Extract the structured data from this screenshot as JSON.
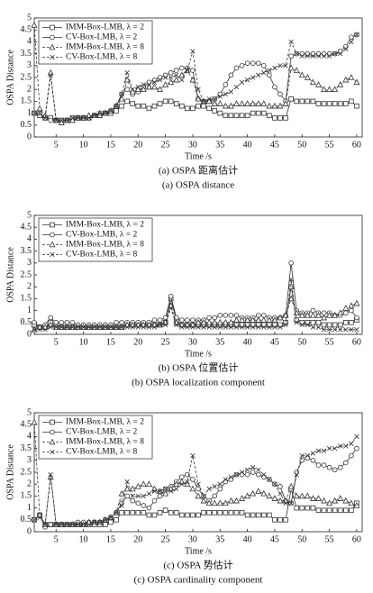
{
  "chart_data": [
    {
      "type": "line",
      "caption": "(a) OSPA 距离估计",
      "subtitle": "(a) OSPA distance",
      "xlabel": "Time /s",
      "ylabel": "OSPA Distance",
      "xlim": [
        1,
        61
      ],
      "xticks": [
        5,
        10,
        15,
        20,
        25,
        30,
        35,
        40,
        45,
        50,
        55,
        60
      ],
      "ylim": [
        0,
        5
      ],
      "yticks": [
        0,
        0.5,
        1,
        1.5,
        2,
        2.5,
        3,
        3.5,
        4,
        4.5,
        5
      ],
      "legend": "upper-left",
      "x": [
        1,
        2,
        3,
        4,
        5,
        6,
        7,
        8,
        9,
        10,
        11,
        12,
        13,
        14,
        15,
        16,
        17,
        18,
        19,
        20,
        21,
        22,
        23,
        24,
        25,
        26,
        27,
        28,
        29,
        30,
        31,
        32,
        33,
        34,
        35,
        36,
        37,
        38,
        39,
        40,
        41,
        42,
        43,
        44,
        45,
        46,
        47,
        48,
        49,
        50,
        51,
        52,
        53,
        54,
        55,
        56,
        57,
        58,
        59,
        60
      ],
      "series": [
        {
          "name": "IMM-Box-LMB, λ = 2",
          "color": "#333333",
          "marker": "square",
          "dash": false,
          "values": [
            1.0,
            0.9,
            0.8,
            0.8,
            0.7,
            0.7,
            0.7,
            0.8,
            0.8,
            0.8,
            0.8,
            0.9,
            0.9,
            1.0,
            1.0,
            1.1,
            1.3,
            1.5,
            1.4,
            1.3,
            1.3,
            1.2,
            1.3,
            1.4,
            1.5,
            1.5,
            1.4,
            1.3,
            1.2,
            1.2,
            1.3,
            1.3,
            1.2,
            1.1,
            1.0,
            0.9,
            0.9,
            0.9,
            0.9,
            0.9,
            1.0,
            1.0,
            1.0,
            0.9,
            0.8,
            0.8,
            0.8,
            1.6,
            1.5,
            1.5,
            1.5,
            1.5,
            1.4,
            1.4,
            1.4,
            1.4,
            1.4,
            1.4,
            1.5,
            1.3
          ]
        },
        {
          "name": "CV-Box-LMB, λ = 2",
          "color": "#333333",
          "marker": "circle",
          "dash": false,
          "values": [
            1.0,
            1.0,
            0.8,
            0.7,
            0.7,
            0.7,
            0.7,
            0.8,
            0.8,
            0.8,
            0.8,
            0.9,
            0.9,
            1.0,
            1.1,
            1.3,
            1.8,
            2.0,
            1.8,
            1.9,
            2.1,
            2.3,
            2.4,
            2.5,
            2.6,
            2.7,
            2.8,
            2.9,
            2.9,
            2.8,
            1.6,
            1.5,
            1.5,
            1.6,
            1.8,
            2.2,
            2.6,
            2.9,
            3.0,
            3.1,
            3.1,
            3.1,
            3.0,
            2.6,
            2.1,
            1.8,
            1.5,
            3.4,
            3.5,
            3.5,
            3.5,
            3.5,
            3.5,
            3.5,
            3.5,
            3.5,
            3.6,
            3.8,
            4.2,
            4.3
          ]
        },
        {
          "name": "IMM-Box-LMB, λ = 8",
          "color": "#333333",
          "marker": "triangle",
          "dash": true,
          "values": [
            4.7,
            1.2,
            0.9,
            2.7,
            0.7,
            0.6,
            0.7,
            0.7,
            0.8,
            0.8,
            0.9,
            0.9,
            1.0,
            1.0,
            1.1,
            1.3,
            1.6,
            2.4,
            1.9,
            2.0,
            2.0,
            2.1,
            2.1,
            2.0,
            2.2,
            2.3,
            2.4,
            2.6,
            2.8,
            2.4,
            1.6,
            1.5,
            1.5,
            1.4,
            1.4,
            1.3,
            1.3,
            1.4,
            1.4,
            1.4,
            1.4,
            1.4,
            1.4,
            1.3,
            1.3,
            1.3,
            1.4,
            2.9,
            2.8,
            2.6,
            2.5,
            2.3,
            2.2,
            2.0,
            2.0,
            2.0,
            2.2,
            2.4,
            2.5,
            2.3
          ]
        },
        {
          "name": "CV-Box-LMB, λ = 8",
          "color": "#333333",
          "marker": "x",
          "dash": true,
          "values": [
            1.0,
            1.0,
            0.8,
            2.6,
            0.7,
            0.7,
            0.7,
            0.8,
            0.8,
            0.8,
            0.8,
            0.9,
            1.0,
            1.0,
            1.1,
            1.3,
            1.8,
            2.7,
            2.0,
            2.1,
            2.2,
            2.2,
            2.3,
            2.4,
            2.5,
            2.5,
            2.6,
            2.4,
            2.8,
            3.6,
            2.0,
            1.5,
            1.6,
            1.6,
            1.7,
            1.8,
            1.9,
            2.1,
            2.3,
            2.4,
            2.5,
            2.6,
            2.7,
            2.8,
            2.9,
            3.0,
            3.0,
            4.0,
            3.5,
            3.4,
            3.4,
            3.4,
            3.4,
            3.4,
            3.4,
            3.5,
            3.5,
            3.7,
            4.0,
            4.3
          ]
        }
      ]
    },
    {
      "type": "line",
      "caption": "(b) OSPA 位置估计",
      "subtitle": "(b) OSPA localization component",
      "xlabel": "Time /s",
      "ylabel": "OSPA Distance",
      "xlim": [
        1,
        61
      ],
      "xticks": [
        5,
        10,
        15,
        20,
        25,
        30,
        35,
        40,
        45,
        50,
        55,
        60
      ],
      "ylim": [
        0,
        5
      ],
      "yticks": [
        0,
        0.5,
        1,
        1.5,
        2,
        2.5,
        3,
        3.5,
        4,
        4.5,
        5
      ],
      "legend": "upper-left",
      "x": [
        1,
        2,
        3,
        4,
        5,
        6,
        7,
        8,
        9,
        10,
        11,
        12,
        13,
        14,
        15,
        16,
        17,
        18,
        19,
        20,
        21,
        22,
        23,
        24,
        25,
        26,
        27,
        28,
        29,
        30,
        31,
        32,
        33,
        34,
        35,
        36,
        37,
        38,
        39,
        40,
        41,
        42,
        43,
        44,
        45,
        46,
        47,
        48,
        49,
        50,
        51,
        52,
        53,
        54,
        55,
        56,
        57,
        58,
        59,
        60
      ],
      "series": [
        {
          "name": "IMM-Box-LMB, λ = 2",
          "color": "#333333",
          "marker": "square",
          "dash": false,
          "values": [
            0.4,
            0.3,
            0.3,
            0.5,
            0.4,
            0.3,
            0.3,
            0.3,
            0.3,
            0.3,
            0.3,
            0.3,
            0.3,
            0.3,
            0.3,
            0.3,
            0.3,
            0.4,
            0.4,
            0.4,
            0.4,
            0.4,
            0.4,
            0.4,
            0.5,
            1.5,
            0.6,
            0.4,
            0.4,
            0.4,
            0.4,
            0.4,
            0.4,
            0.4,
            0.4,
            0.4,
            0.4,
            0.4,
            0.4,
            0.4,
            0.4,
            0.4,
            0.4,
            0.4,
            0.4,
            0.4,
            0.5,
            2.0,
            0.6,
            0.5,
            0.5,
            0.5,
            0.5,
            0.4,
            0.4,
            0.4,
            0.4,
            0.5,
            0.5,
            0.6
          ]
        },
        {
          "name": "CV-Box-LMB, λ = 2",
          "color": "#333333",
          "marker": "circle",
          "dash": false,
          "values": [
            0.5,
            0.3,
            0.4,
            0.7,
            0.5,
            0.5,
            0.5,
            0.5,
            0.4,
            0.4,
            0.4,
            0.4,
            0.4,
            0.4,
            0.4,
            0.5,
            0.5,
            0.5,
            0.5,
            0.5,
            0.5,
            0.5,
            0.6,
            0.6,
            0.7,
            1.6,
            0.7,
            0.6,
            0.6,
            0.6,
            0.6,
            0.6,
            0.7,
            0.7,
            0.8,
            0.8,
            0.8,
            0.8,
            0.7,
            0.7,
            0.7,
            0.8,
            0.8,
            0.7,
            0.7,
            0.7,
            0.8,
            3.0,
            1.0,
            0.9,
            0.9,
            1.0,
            0.9,
            0.9,
            0.9,
            0.8,
            0.8,
            0.9,
            1.0,
            0.7
          ]
        },
        {
          "name": "IMM-Box-LMB, λ = 8",
          "color": "#333333",
          "marker": "triangle",
          "dash": true,
          "values": [
            0.2,
            0.3,
            0.3,
            0.4,
            0.3,
            0.3,
            0.3,
            0.3,
            0.3,
            0.3,
            0.3,
            0.3,
            0.3,
            0.3,
            0.3,
            0.3,
            0.3,
            0.4,
            0.4,
            0.4,
            0.4,
            0.4,
            0.4,
            0.4,
            0.5,
            1.2,
            0.5,
            0.4,
            0.4,
            0.4,
            0.5,
            0.5,
            0.5,
            0.5,
            0.5,
            0.5,
            0.5,
            0.6,
            0.6,
            0.6,
            0.6,
            0.6,
            0.6,
            0.6,
            0.6,
            0.7,
            0.8,
            1.5,
            0.9,
            0.8,
            0.8,
            0.8,
            0.8,
            0.7,
            0.8,
            0.8,
            0.9,
            1.1,
            1.2,
            1.3
          ]
        },
        {
          "name": "CV-Box-LMB, λ = 8",
          "color": "#333333",
          "marker": "x",
          "dash": true,
          "values": [
            0.2,
            0.2,
            0.2,
            0.3,
            0.3,
            0.3,
            0.3,
            0.3,
            0.3,
            0.3,
            0.3,
            0.3,
            0.3,
            0.3,
            0.3,
            0.3,
            0.3,
            0.3,
            0.3,
            0.3,
            0.3,
            0.3,
            0.3,
            0.4,
            0.4,
            1.1,
            0.4,
            0.3,
            0.3,
            0.3,
            0.3,
            0.3,
            0.3,
            0.3,
            0.3,
            0.3,
            0.3,
            0.3,
            0.3,
            0.3,
            0.3,
            0.3,
            0.3,
            0.3,
            0.3,
            0.3,
            0.4,
            2.3,
            0.5,
            0.4,
            0.4,
            0.3,
            0.3,
            0.2,
            0.2,
            0.2,
            0.2,
            0.2,
            0.2,
            0.2
          ]
        }
      ]
    },
    {
      "type": "line",
      "caption": "(c) OSPA 势估计",
      "subtitle": "(c) OSPA cardinality component",
      "xlabel": "Time /s",
      "ylabel": "OSPA Distance",
      "xlim": [
        1,
        61
      ],
      "xticks": [
        5,
        10,
        15,
        20,
        25,
        30,
        35,
        40,
        45,
        50,
        55,
        60
      ],
      "ylim": [
        0,
        5
      ],
      "yticks": [
        0,
        0.5,
        1,
        1.5,
        2,
        2.5,
        3,
        3.5,
        4,
        4.5,
        5
      ],
      "legend": "upper-left",
      "x": [
        1,
        2,
        3,
        4,
        5,
        6,
        7,
        8,
        9,
        10,
        11,
        12,
        13,
        14,
        15,
        16,
        17,
        18,
        19,
        20,
        21,
        22,
        23,
        24,
        25,
        26,
        27,
        28,
        29,
        30,
        31,
        32,
        33,
        34,
        35,
        36,
        37,
        38,
        39,
        40,
        41,
        42,
        43,
        44,
        45,
        46,
        47,
        48,
        49,
        50,
        51,
        52,
        53,
        54,
        55,
        56,
        57,
        58,
        59,
        60
      ],
      "series": [
        {
          "name": "IMM-Box-LMB, λ = 2",
          "color": "#333333",
          "marker": "square",
          "dash": false,
          "values": [
            0.5,
            0.7,
            0.3,
            0.3,
            0.3,
            0.3,
            0.3,
            0.3,
            0.3,
            0.3,
            0.3,
            0.3,
            0.3,
            0.3,
            0.4,
            0.5,
            0.8,
            0.8,
            0.8,
            0.8,
            0.8,
            0.7,
            0.7,
            0.8,
            0.9,
            0.8,
            0.8,
            0.7,
            0.7,
            0.7,
            0.7,
            0.8,
            0.8,
            0.8,
            0.8,
            0.8,
            0.8,
            0.8,
            0.8,
            0.7,
            0.7,
            0.7,
            0.7,
            0.7,
            0.5,
            0.5,
            0.5,
            1.8,
            1.0,
            1.0,
            1.0,
            1.0,
            0.9,
            0.9,
            0.9,
            0.9,
            0.9,
            0.9,
            0.9,
            1.2
          ]
        },
        {
          "name": "CV-Box-LMB, λ = 2",
          "color": "#333333",
          "marker": "circle",
          "dash": false,
          "values": [
            0.5,
            0.7,
            0.2,
            0.3,
            0.3,
            0.3,
            0.3,
            0.3,
            0.4,
            0.4,
            0.4,
            0.4,
            0.4,
            0.5,
            0.6,
            0.8,
            1.2,
            1.5,
            1.3,
            1.2,
            1.1,
            1.0,
            1.3,
            1.5,
            1.8,
            1.9,
            2.1,
            2.3,
            2.4,
            2.2,
            1.8,
            1.5,
            1.3,
            1.5,
            1.8,
            2.1,
            2.2,
            2.4,
            2.4,
            2.4,
            2.5,
            2.4,
            2.3,
            2.2,
            2.0,
            1.9,
            1.3,
            1.2,
            2.5,
            3.0,
            3.1,
            3.0,
            2.8,
            2.8,
            2.7,
            2.6,
            2.7,
            2.9,
            3.2,
            3.5
          ]
        },
        {
          "name": "IMM-Box-LMB, λ = 8",
          "color": "#333333",
          "marker": "triangle",
          "dash": true,
          "values": [
            4.6,
            0.7,
            0.3,
            2.3,
            0.3,
            0.3,
            0.3,
            0.3,
            0.3,
            0.3,
            0.4,
            0.4,
            0.4,
            0.5,
            0.6,
            0.8,
            1.6,
            1.8,
            1.8,
            1.9,
            2.0,
            2.0,
            1.8,
            1.7,
            1.6,
            1.8,
            2.0,
            2.1,
            2.0,
            1.8,
            1.5,
            1.3,
            1.2,
            1.2,
            1.2,
            1.2,
            1.3,
            1.3,
            1.4,
            1.5,
            1.6,
            1.7,
            1.6,
            1.5,
            1.4,
            1.3,
            1.3,
            1.9,
            1.5,
            1.5,
            1.5,
            1.4,
            1.4,
            1.3,
            1.2,
            1.3,
            1.4,
            1.3,
            1.2,
            1.1
          ]
        },
        {
          "name": "CV-Box-LMB, λ = 8",
          "color": "#333333",
          "marker": "x",
          "dash": true,
          "values": [
            0.5,
            0.6,
            0.3,
            2.4,
            0.3,
            0.3,
            0.3,
            0.3,
            0.3,
            0.3,
            0.3,
            0.4,
            0.4,
            0.5,
            0.6,
            0.8,
            1.1,
            2.1,
            1.5,
            1.5,
            1.5,
            1.6,
            1.7,
            1.7,
            1.8,
            1.7,
            1.8,
            2.0,
            2.1,
            3.2,
            2.0,
            1.5,
            1.8,
            1.9,
            2.0,
            2.2,
            2.3,
            2.4,
            2.5,
            2.6,
            2.7,
            2.6,
            2.4,
            2.2,
            2.0,
            1.6,
            1.2,
            1.2,
            2.4,
            3.2,
            3.2,
            3.3,
            3.4,
            3.4,
            3.5,
            3.5,
            3.6,
            3.6,
            3.7,
            4.0
          ]
        }
      ]
    }
  ]
}
